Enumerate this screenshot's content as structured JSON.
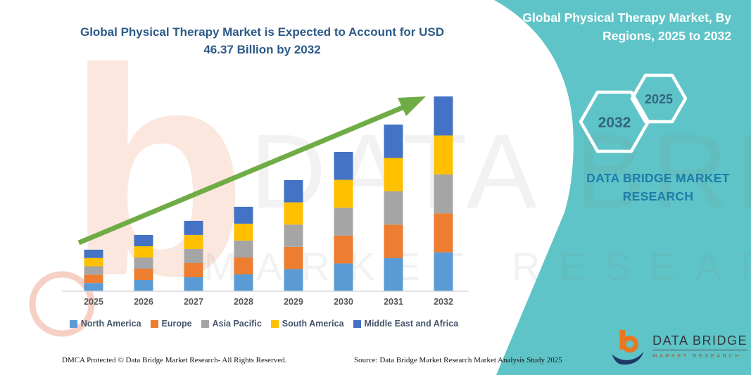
{
  "chart": {
    "title": "Global Physical Therapy Market is Expected to Account for USD 46.37 Billion by 2032"
  },
  "chart_data": {
    "type": "bar",
    "stacked": true,
    "title": "Global Physical Therapy Market is Expected to Account for USD 46.37 Billion by 2032",
    "xlabel": "",
    "ylabel": "",
    "unit": "USD Billion",
    "grid": false,
    "legend_position": "bottom",
    "values_estimated_from_pixels": true,
    "categories": [
      "2025",
      "2026",
      "2027",
      "2028",
      "2029",
      "2030",
      "2031",
      "2032"
    ],
    "totals": [
      9.88,
      13.39,
      16.74,
      20.09,
      26.45,
      33.15,
      39.67,
      46.37
    ],
    "series": [
      {
        "name": "North America",
        "color": "#5B9BD5",
        "values": [
          1.98,
          2.68,
          3.35,
          4.02,
          5.29,
          6.63,
          7.93,
          9.27
        ]
      },
      {
        "name": "Europe",
        "color": "#ED7D31",
        "values": [
          1.98,
          2.68,
          3.35,
          4.02,
          5.29,
          6.63,
          7.93,
          9.27
        ]
      },
      {
        "name": "Asia Pacific",
        "color": "#A5A5A5",
        "values": [
          1.98,
          2.68,
          3.35,
          4.02,
          5.29,
          6.63,
          7.93,
          9.27
        ]
      },
      {
        "name": "South America",
        "color": "#FFC000",
        "values": [
          1.98,
          2.68,
          3.35,
          4.02,
          5.29,
          6.63,
          7.93,
          9.27
        ]
      },
      {
        "name": "Middle East and Africa",
        "color": "#4472C4",
        "values": [
          1.98,
          2.68,
          3.35,
          4.02,
          5.29,
          6.63,
          7.93,
          9.27
        ]
      }
    ],
    "annotations": [
      "green upward trend arrow from 2025 to 2032"
    ]
  },
  "side_panel": {
    "title": "Global Physical Therapy Market, By Regions, 2025 to 2032",
    "hexagons": [
      "2032",
      "2025"
    ],
    "brand": "DATA BRIDGE MARKET RESEARCH",
    "accent_color": "#5FC4C7"
  },
  "logo": {
    "name": "DATA BRIDGE",
    "subtitle": "MARKET RESEARCH"
  },
  "watermark": {
    "big_text": "DATA BRIDGE",
    "sub_text": "MARKET RESEARCH",
    "letter": "b"
  },
  "footer": {
    "dmca": "DMCA Protected © Data Bridge Market Research-  All Rights Reserved.",
    "source": "Source: Data Bridge Market Research  Market Analysis Study 2025"
  }
}
